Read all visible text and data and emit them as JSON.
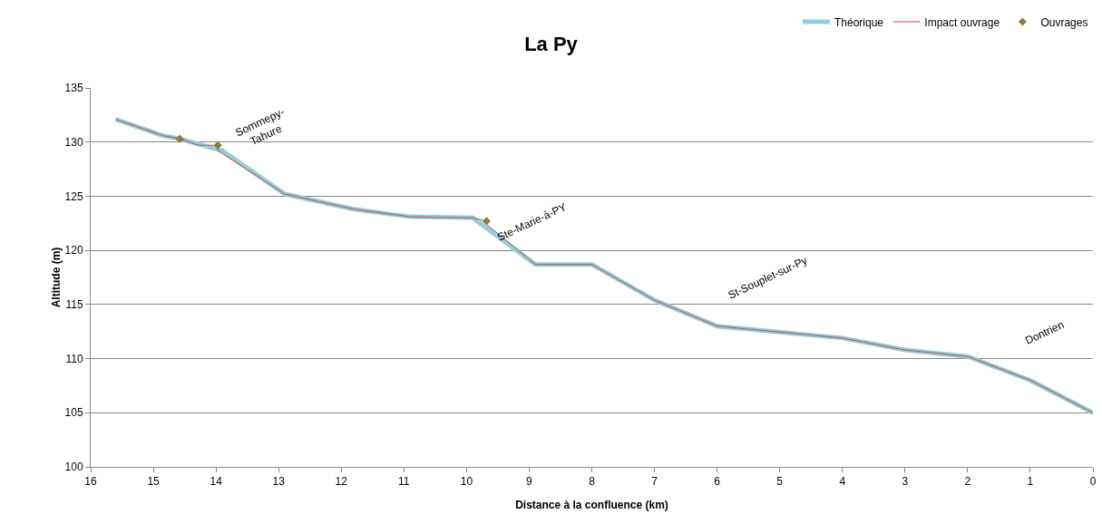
{
  "chart_data": {
    "type": "line",
    "title": "La Py",
    "xlabel": "Distance à la confluence (km)",
    "ylabel": "Altitude (m)",
    "xlim": [
      16,
      0
    ],
    "xticks": [
      16,
      15,
      14,
      13,
      12,
      11,
      10,
      9,
      8,
      7,
      6,
      5,
      4,
      3,
      2,
      1,
      0
    ],
    "ylim": [
      100,
      135
    ],
    "yticks": [
      100,
      105,
      110,
      115,
      120,
      125,
      130,
      135
    ],
    "grid": "y",
    "legend": "top right",
    "series": [
      {
        "name": "Théorique",
        "color": "#92cddc",
        "x": [
          15.6,
          14.85,
          14.58,
          13.9,
          12.9,
          11.8,
          10.9,
          9.9,
          8.9,
          8,
          7,
          6,
          4,
          3,
          2,
          1,
          0
        ],
        "values": [
          132.1,
          130.6,
          130.3,
          129.2,
          125.2,
          123.8,
          123.1,
          123.0,
          118.7,
          118.7,
          115.4,
          113.0,
          111.9,
          110.8,
          110.2,
          108.0,
          105.0
        ]
      },
      {
        "name": "Impact ouvrage",
        "color": "#c0504d",
        "x": [
          15.6,
          14.85,
          14.58,
          14.28,
          13.97,
          13.97,
          12.9,
          11.8,
          10.9,
          9.9,
          9.68,
          9.68,
          8.9,
          8,
          7,
          6,
          4,
          3,
          2,
          1,
          0
        ],
        "values": [
          132.1,
          130.6,
          130.3,
          129.7,
          129.7,
          129.2,
          125.2,
          123.8,
          123.1,
          123.0,
          122.7,
          122.4,
          118.7,
          118.7,
          115.4,
          113.0,
          111.9,
          110.8,
          110.2,
          108.0,
          105.0
        ]
      },
      {
        "name": "Ouvrages",
        "type": "scatter",
        "marker": "diamond",
        "color": "#8b7d3a",
        "x": [
          14.58,
          13.97,
          9.68
        ],
        "values": [
          130.3,
          129.7,
          122.7
        ]
      }
    ],
    "annotations": [
      "Sommepy-\nTahure",
      "Ste-Marie-à-PY",
      "St-Souplet-sur-Py",
      "Dontrien"
    ]
  }
}
